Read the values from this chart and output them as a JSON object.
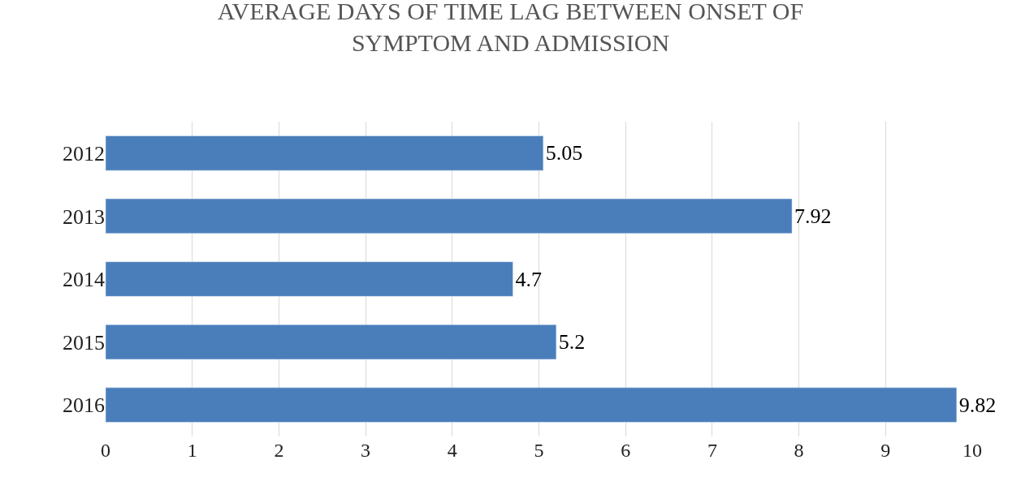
{
  "chart_data": {
    "type": "bar",
    "orientation": "horizontal",
    "title": "AVERAGE DAYS OF TIME LAG BETWEEN ONSET OF SYMPTOM AND ADMISSION",
    "categories": [
      "2012",
      "2013",
      "2014",
      "2015",
      "2016"
    ],
    "values": [
      5.05,
      7.92,
      4.7,
      5.2,
      9.82
    ],
    "color": "#4a7ebb",
    "xlim": [
      0,
      10
    ],
    "xticks": [
      0,
      1,
      2,
      3,
      4,
      5,
      6,
      7,
      8,
      9,
      10
    ],
    "grid": "x",
    "data_labels": true
  }
}
